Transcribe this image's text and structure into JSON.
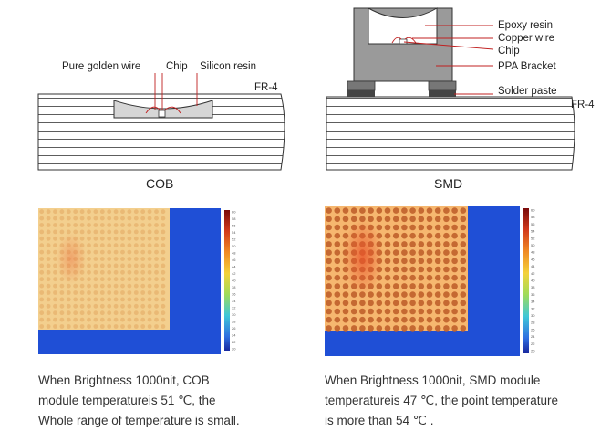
{
  "cob": {
    "title": "COB",
    "labels": {
      "wire": "Pure golden wire",
      "chip": "Chip",
      "resin": "Silicon resin",
      "board": "FR-4"
    }
  },
  "smd": {
    "title": "SMD",
    "labels": {
      "epoxy": "Epoxy resin",
      "wire": "Copper wire",
      "chip": "Chip",
      "bracket": "PPA Bracket",
      "paste": "Solder paste",
      "board": "FR-4"
    }
  },
  "thermal": {
    "cob": {
      "hotspot_strength": 0.35,
      "dot_contrast": "low"
    },
    "smd": {
      "hotspot_strength": 0.8,
      "dot_contrast": "high"
    },
    "scale_ticks": [
      "60",
      "58",
      "56",
      "54",
      "52",
      "50",
      "48",
      "46",
      "44",
      "42",
      "40",
      "38",
      "36",
      "34",
      "32",
      "30",
      "28",
      "26",
      "24",
      "22",
      "20"
    ]
  },
  "captions": {
    "cob": [
      "When Brightness 1000nit, COB",
      "module  temperatureis 51 ℃, the",
      "Whole range of temperature is small."
    ],
    "smd": [
      "When Brightness 1000nit, SMD module",
      "temperatureis 47 ℃, the point temperature",
      "is more than 54  ℃ ."
    ]
  },
  "colors": {
    "cold": "#1f4fd6",
    "warm_cob": "#f3cf8e",
    "warm_smd": "#f6b76f",
    "dot_smd": "#c0612b"
  }
}
